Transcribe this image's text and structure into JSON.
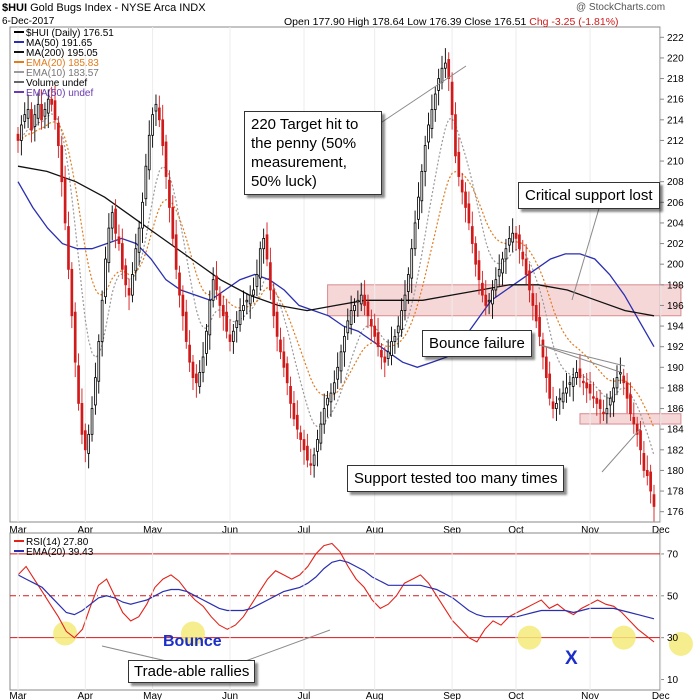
{
  "header": {
    "symbol": "$HUI",
    "name": "Gold Bugs Index - NYSE Arca INDX",
    "date": "6-Dec-2017",
    "open": "Open 177.90",
    "high": "High 178.64",
    "low": "Low 176.39",
    "close": "Close 176.51",
    "change": "Chg -3.25 (-1.81%)",
    "change_color": "#d11a1a",
    "watermark": "@ StockCharts.com"
  },
  "legend": {
    "price": [
      {
        "label": "$HUI (Daily) 176.51",
        "color": "#000000"
      },
      {
        "label": "MA(50) 191.65",
        "color": "#2a2fb0"
      },
      {
        "label": "MA(200) 195.05",
        "color": "#111111"
      },
      {
        "label": "EMA(20) 185.83",
        "color": "#e07b1e"
      },
      {
        "label": "EMA(10) 183.57",
        "color": "#9a9a9a"
      },
      {
        "label": "Volume undef",
        "color": "#666666"
      },
      {
        "label": "EMA(50) undef",
        "color": "#6a3ab0"
      }
    ],
    "rsi": [
      {
        "label": "RSI(14) 27.80",
        "color": "#e0241c"
      },
      {
        "label": "EMA(20) 39.43",
        "color": "#2a2fb0"
      }
    ]
  },
  "annotations": {
    "target": "220 Target hit to\nthe penny (50%\nmeasurement,\n50% luck)",
    "critical": "Critical support lost",
    "bounce_failure": "Bounce failure",
    "support_tested": "Support tested too many times",
    "bounce": "Bounce",
    "tradeable": "Trade-able rallies",
    "x_mark": "X"
  },
  "colors": {
    "up": "#000000",
    "down": "#d11a1a",
    "zone_fill": "#f3c9cb",
    "zone_stroke": "#d98a8e",
    "rsi_line": "#e0241c",
    "rsi_ema": "#2a2fb0",
    "highlight": "#f5ea7a"
  },
  "chart_data": {
    "type": "candlestick",
    "price_axis": {
      "ylim": [
        175,
        223
      ],
      "ticks": [
        176,
        178,
        180,
        182,
        184,
        186,
        188,
        190,
        192,
        194,
        196,
        198,
        200,
        202,
        204,
        206,
        208,
        210,
        212,
        214,
        216,
        218,
        220,
        222
      ]
    },
    "months": [
      "Mar",
      "Apr",
      "May",
      "Jun",
      "Jul",
      "Aug",
      "Sep",
      "Oct",
      "Nov",
      "Dec"
    ],
    "month_days": [
      0,
      20,
      40,
      63,
      85,
      106,
      129,
      148,
      170,
      191
    ],
    "closes": [
      212.0,
      213.5,
      214.5,
      215.0,
      213.0,
      214.5,
      215.5,
      214.0,
      215.0,
      216.0,
      215.5,
      214.0,
      211.5,
      208.0,
      204.0,
      199.5,
      195.0,
      190.5,
      186.5,
      183.5,
      182.0,
      183.5,
      186.0,
      189.0,
      192.5,
      196.5,
      200.5,
      203.5,
      205.0,
      203.0,
      202.0,
      199.5,
      198.0,
      197.0,
      199.0,
      201.5,
      203.5,
      206.0,
      209.5,
      212.5,
      214.5,
      215.5,
      214.0,
      211.5,
      208.5,
      205.5,
      202.5,
      199.5,
      197.0,
      195.0,
      192.5,
      190.5,
      189.0,
      188.5,
      189.5,
      191.0,
      193.5,
      196.5,
      198.5,
      197.5,
      196.0,
      195.0,
      193.5,
      192.5,
      193.5,
      194.5,
      195.5,
      196.0,
      196.5,
      197.0,
      197.5,
      199.0,
      201.5,
      202.5,
      200.5,
      197.5,
      195.0,
      193.0,
      191.5,
      190.0,
      188.5,
      186.5,
      185.0,
      184.0,
      183.0,
      182.0,
      181.0,
      180.5,
      181.5,
      183.0,
      184.5,
      186.0,
      187.0,
      187.5,
      188.5,
      190.0,
      191.5,
      193.0,
      194.5,
      195.5,
      196.0,
      196.5,
      197.0,
      196.0,
      195.0,
      194.0,
      193.0,
      192.0,
      191.0,
      190.5,
      191.5,
      192.5,
      193.0,
      194.0,
      195.5,
      197.0,
      199.0,
      201.5,
      204.0,
      206.5,
      209.0,
      211.5,
      213.5,
      215.0,
      216.5,
      218.0,
      219.0,
      219.5,
      218.0,
      214.5,
      210.5,
      208.5,
      207.0,
      205.5,
      204.0,
      202.0,
      200.0,
      198.5,
      197.0,
      196.0,
      196.5,
      197.5,
      198.5,
      199.5,
      200.5,
      201.5,
      202.5,
      203.0,
      202.5,
      201.5,
      200.5,
      199.0,
      197.5,
      196.0,
      194.5,
      193.0,
      191.0,
      189.0,
      187.0,
      186.0,
      186.5,
      187.0,
      187.5,
      188.0,
      188.5,
      189.0,
      189.5,
      189.0,
      188.5,
      188.0,
      187.5,
      187.0,
      186.5,
      186.0,
      185.5,
      186.0,
      187.0,
      188.0,
      189.0,
      189.5,
      188.5,
      187.0,
      185.5,
      184.5,
      183.5,
      182.0,
      180.0,
      179.5,
      178.0,
      176.51
    ],
    "ma50": [
      208.0,
      205.5,
      203.5,
      202.0,
      201.5,
      201.5,
      202.0,
      202.5,
      202.0,
      200.5,
      198.5,
      197.5,
      197.0,
      196.5,
      197.5,
      198.5,
      199.0,
      198.5,
      197.5,
      196.0,
      195.5,
      195.0,
      194.0,
      193.5,
      192.5,
      191.5,
      190.5,
      190.0,
      190.5,
      191.0,
      192.5,
      194.5,
      196.5,
      197.5,
      198.5,
      199.5,
      200.5,
      201.0,
      201.0,
      200.5,
      199.0,
      197.0,
      194.5,
      192.0
    ],
    "ma200": [
      209.5,
      209.0,
      208.0,
      206.5,
      204.5,
      202.5,
      200.5,
      198.5,
      197.0,
      196.0,
      195.5,
      196.0,
      196.5,
      196.5,
      196.5,
      197.0,
      197.5,
      198.0,
      198.0,
      197.5,
      196.5,
      195.5,
      195.0
    ],
    "zones": [
      {
        "from_day": 92,
        "to_day": 197,
        "low": 195.0,
        "high": 198.0
      },
      {
        "from_day": 167,
        "to_day": 197,
        "low": 184.5,
        "high": 185.5
      }
    ],
    "rsi": {
      "ylim": [
        5,
        80
      ],
      "ticks": [
        10,
        30,
        50,
        70
      ],
      "levels": {
        "overbought": 70,
        "mid": 50,
        "oversold": 30
      },
      "values": [
        60,
        64,
        58,
        52,
        46,
        40,
        33,
        30,
        34,
        45,
        55,
        58,
        50,
        42,
        38,
        40,
        46,
        54,
        58,
        60,
        57,
        52,
        48,
        45,
        40,
        36,
        34,
        36,
        40,
        46,
        52,
        58,
        62,
        60,
        58,
        60,
        64,
        70,
        74,
        75,
        71,
        64,
        58,
        54,
        48,
        44,
        46,
        50,
        56,
        58,
        60,
        56,
        50,
        44,
        38,
        34,
        30,
        28,
        34,
        38,
        36,
        40,
        42,
        44,
        46,
        48,
        44,
        46,
        43,
        41,
        44,
        46,
        48,
        46,
        45,
        42,
        38,
        34,
        31,
        28
      ],
      "ema": [
        60,
        58,
        56,
        54,
        50,
        46,
        42,
        41,
        43,
        46,
        49,
        50,
        49,
        47,
        46,
        47,
        48,
        50,
        52,
        53,
        53,
        52,
        50,
        48,
        46,
        44,
        43,
        43,
        43,
        44,
        46,
        48,
        50,
        52,
        53,
        54,
        56,
        59,
        63,
        66,
        67,
        66,
        64,
        62,
        59,
        57,
        55,
        55,
        55,
        55,
        55,
        54,
        53,
        51,
        49,
        46,
        43,
        41,
        40,
        40,
        40,
        40,
        40,
        41,
        42,
        43,
        43,
        43,
        43,
        42,
        43,
        44,
        44,
        44,
        44,
        43,
        42,
        41,
        40,
        39
      ]
    }
  }
}
